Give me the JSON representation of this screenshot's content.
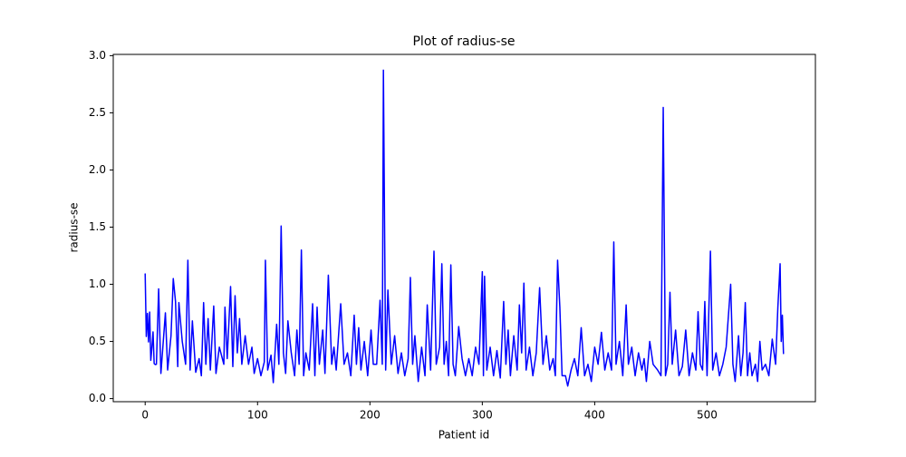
{
  "chart_data": {
    "type": "line",
    "title": "Plot of radius-se",
    "x_label": "Patient id",
    "y_label": "radius-se",
    "x": [
      0,
      1,
      2,
      3,
      4,
      5,
      6,
      7,
      8,
      9,
      10,
      12,
      14,
      18,
      20,
      23,
      25,
      27,
      29,
      30,
      33,
      36,
      38,
      40,
      42,
      45,
      48,
      50,
      52,
      54,
      56,
      58,
      61,
      63,
      66,
      70,
      71,
      73,
      76,
      78,
      80,
      82,
      84,
      86,
      89,
      92,
      95,
      97,
      100,
      103,
      106,
      107,
      109,
      112,
      114,
      117,
      119,
      121,
      123,
      125,
      127,
      130,
      133,
      135,
      137,
      139,
      141,
      143,
      146,
      149,
      151,
      153,
      155,
      158,
      160,
      163,
      166,
      168,
      170,
      174,
      177,
      180,
      183,
      186,
      188,
      190,
      192,
      195,
      198,
      201,
      203,
      206,
      209,
      211,
      212,
      214,
      216,
      219,
      222,
      225,
      228,
      231,
      234,
      236,
      238,
      240,
      243,
      246,
      249,
      251,
      254,
      257,
      259,
      262,
      264,
      266,
      268,
      270,
      272,
      274,
      276,
      279,
      282,
      285,
      288,
      291,
      294,
      297,
      300,
      301,
      302,
      304,
      307,
      310,
      313,
      316,
      319,
      321,
      323,
      325,
      328,
      331,
      333,
      335,
      337,
      339,
      342,
      345,
      348,
      351,
      354,
      357,
      360,
      363,
      365,
      367,
      369,
      371,
      374,
      376,
      379,
      382,
      385,
      388,
      391,
      394,
      397,
      400,
      403,
      406,
      409,
      412,
      415,
      417,
      419,
      422,
      425,
      428,
      430,
      433,
      436,
      439,
      442,
      444,
      446,
      449,
      452,
      456,
      459,
      461,
      463,
      465,
      467,
      469,
      472,
      475,
      478,
      481,
      484,
      487,
      490,
      492,
      494,
      496,
      498,
      500,
      503,
      505,
      508,
      511,
      514,
      517,
      521,
      523,
      525,
      528,
      530,
      532,
      534,
      536,
      538,
      540,
      543,
      545,
      547,
      549,
      552,
      555,
      558,
      561,
      563,
      565,
      566,
      567,
      568
    ],
    "values": [
      1.095,
      0.5435,
      0.7456,
      0.4956,
      0.7572,
      0.3345,
      0.4467,
      0.5835,
      0.3063,
      0.2976,
      0.3,
      0.96,
      0.22,
      0.75,
      0.25,
      0.55,
      1.05,
      0.85,
      0.28,
      0.84,
      0.5,
      0.3,
      1.21,
      0.25,
      0.68,
      0.23,
      0.35,
      0.2,
      0.84,
      0.3,
      0.7,
      0.25,
      0.81,
      0.22,
      0.45,
      0.3,
      0.8,
      0.35,
      0.98,
      0.28,
      0.9,
      0.4,
      0.7,
      0.3,
      0.55,
      0.3,
      0.45,
      0.22,
      0.35,
      0.2,
      0.32,
      1.21,
      0.25,
      0.38,
      0.14,
      0.65,
      0.3,
      1.51,
      0.4,
      0.22,
      0.68,
      0.4,
      0.2,
      0.6,
      0.3,
      1.3,
      0.2,
      0.4,
      0.25,
      0.83,
      0.2,
      0.8,
      0.3,
      0.6,
      0.22,
      1.08,
      0.3,
      0.45,
      0.25,
      0.83,
      0.3,
      0.4,
      0.2,
      0.73,
      0.3,
      0.62,
      0.25,
      0.5,
      0.2,
      0.6,
      0.3,
      0.3,
      0.86,
      0.3,
      2.873,
      0.25,
      0.95,
      0.3,
      0.55,
      0.22,
      0.4,
      0.2,
      0.35,
      1.06,
      0.3,
      0.55,
      0.15,
      0.45,
      0.2,
      0.82,
      0.25,
      1.29,
      0.3,
      0.45,
      1.18,
      0.3,
      0.5,
      0.2,
      1.17,
      0.3,
      0.2,
      0.63,
      0.35,
      0.2,
      0.35,
      0.2,
      0.45,
      0.3,
      1.11,
      0.2,
      1.07,
      0.25,
      0.45,
      0.2,
      0.42,
      0.18,
      0.85,
      0.3,
      0.6,
      0.2,
      0.55,
      0.25,
      0.82,
      0.4,
      1.01,
      0.25,
      0.45,
      0.2,
      0.4,
      0.97,
      0.3,
      0.55,
      0.25,
      0.35,
      0.2,
      1.21,
      0.8,
      0.2,
      0.2,
      0.11,
      0.25,
      0.35,
      0.2,
      0.62,
      0.2,
      0.3,
      0.15,
      0.45,
      0.3,
      0.58,
      0.25,
      0.4,
      0.25,
      1.37,
      0.3,
      0.5,
      0.2,
      0.82,
      0.3,
      0.45,
      0.2,
      0.4,
      0.25,
      0.35,
      0.15,
      0.5,
      0.3,
      0.25,
      0.2,
      2.547,
      0.2,
      0.3,
      0.93,
      0.3,
      0.6,
      0.2,
      0.28,
      0.6,
      0.2,
      0.4,
      0.25,
      0.76,
      0.3,
      0.25,
      0.85,
      0.2,
      1.29,
      0.25,
      0.4,
      0.2,
      0.3,
      0.45,
      1.0,
      0.3,
      0.15,
      0.55,
      0.2,
      0.4,
      0.84,
      0.2,
      0.4,
      0.2,
      0.3,
      0.15,
      0.5,
      0.25,
      0.3,
      0.2,
      0.52,
      0.3,
      0.8,
      1.18,
      0.5,
      0.73,
      0.39
    ],
    "color": "#0000ff",
    "xlim": [
      -28.4,
      596.4
    ],
    "xticks": [
      0,
      100,
      200,
      300,
      400,
      500
    ],
    "ylim": [
      -0.027,
      3.011
    ],
    "yticks": [
      {
        "value": 0,
        "label": "0.0"
      },
      0.5,
      {
        "value": 1,
        "label": "1.0"
      },
      1.5,
      {
        "value": 2,
        "label": "2.0"
      },
      2.5,
      {
        "value": 3,
        "label": "3.0"
      }
    ]
  }
}
